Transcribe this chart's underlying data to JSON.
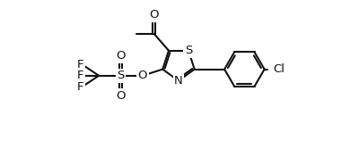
{
  "background_color": "#ffffff",
  "line_color": "#111111",
  "line_width": 1.5,
  "font_size": 9,
  "fig_width": 3.8,
  "fig_height": 1.58,
  "dpi": 100,
  "xlim": [
    -0.5,
    9.5
  ],
  "ylim": [
    -0.2,
    4.2
  ]
}
